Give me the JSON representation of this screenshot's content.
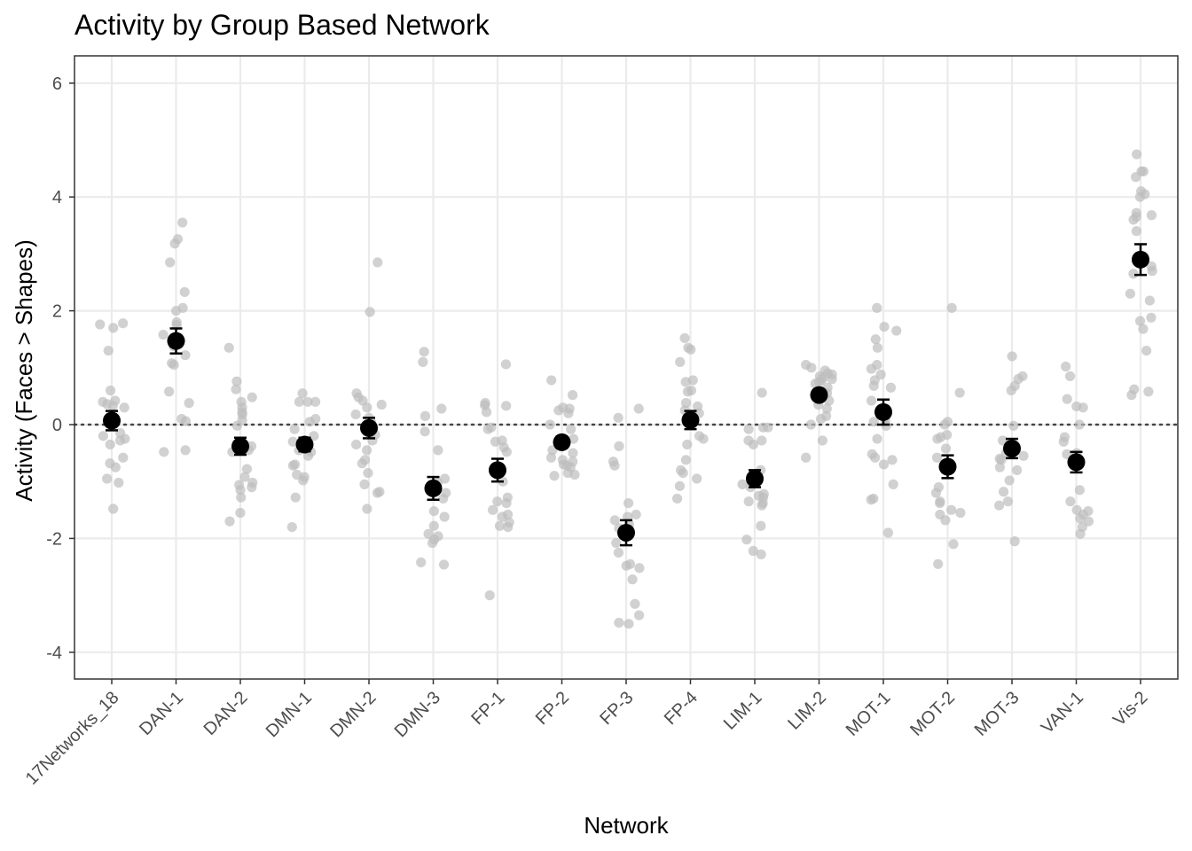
{
  "chart_data": {
    "type": "scatter",
    "title": "Activity by Group Based Network",
    "xlabel": "Network",
    "ylabel": "Activity (Faces > Shapes)",
    "ylim": [
      -4.5,
      6.5
    ],
    "yticks": [
      -4,
      -2,
      0,
      2,
      4,
      6
    ],
    "grid": true,
    "reference_line": 0,
    "categories": [
      "17Networks_18",
      "DAN-1",
      "DAN-2",
      "DMN-1",
      "DMN-2",
      "DMN-3",
      "FP-1",
      "FP-2",
      "FP-3",
      "FP-4",
      "LIM-1",
      "LIM-2",
      "MOT-1",
      "MOT-2",
      "MOT-3",
      "VAN-1",
      "Vis-2"
    ],
    "series": [
      {
        "kind": "mean",
        "values": [
          0.07,
          1.47,
          -0.38,
          -0.35,
          -0.06,
          -1.12,
          -0.8,
          -0.31,
          -1.9,
          0.08,
          -0.95,
          0.52,
          0.22,
          -0.74,
          -0.42,
          -0.66,
          2.9
        ],
        "error": [
          0.17,
          0.22,
          0.15,
          0.12,
          0.18,
          0.2,
          0.2,
          0.1,
          0.22,
          0.16,
          0.15,
          0.08,
          0.22,
          0.2,
          0.17,
          0.18,
          0.27
        ]
      },
      {
        "kind": "individual",
        "points": [
          [
            1.78,
            1.76,
            1.7,
            1.3,
            0.6,
            0.42,
            0.4,
            0.36,
            0.33,
            0.3,
            -0.15,
            -0.2,
            -0.25,
            -0.28,
            -0.35,
            -0.58,
            -0.68,
            -0.75,
            -0.95,
            -1.02,
            -1.48
          ],
          [
            3.55,
            3.26,
            3.18,
            2.85,
            2.33,
            2.05,
            2.0,
            1.8,
            1.75,
            1.58,
            1.52,
            1.45,
            1.38,
            1.22,
            1.08,
            1.05,
            0.58,
            0.38,
            0.1,
            0.06,
            -0.45,
            -0.48
          ],
          [
            1.35,
            0.76,
            0.62,
            0.48,
            0.4,
            0.3,
            0.22,
            0.18,
            0.08,
            -0.02,
            -0.38,
            -0.45,
            -0.48,
            -0.78,
            -0.92,
            -1.02,
            -1.06,
            -1.1,
            -1.15,
            -1.28,
            -1.55,
            -1.7
          ],
          [
            0.55,
            0.4,
            0.4,
            0.4,
            0.1,
            0.05,
            -0.08,
            -0.2,
            -0.3,
            -0.45,
            -0.48,
            -0.55,
            -0.7,
            -0.72,
            -0.88,
            -0.92,
            -0.98,
            -1.28,
            -1.8
          ],
          [
            2.85,
            1.98,
            0.55,
            0.48,
            0.42,
            0.35,
            0.3,
            0.18,
            0.12,
            0.05,
            -0.18,
            -0.28,
            -0.35,
            -0.45,
            -0.62,
            -0.68,
            -0.85,
            -1.05,
            -1.18,
            -1.2,
            -1.48
          ],
          [
            1.28,
            1.1,
            0.28,
            0.15,
            -0.12,
            -0.45,
            -0.95,
            -1.02,
            -1.2,
            -1.3,
            -1.52,
            -1.62,
            -1.78,
            -1.92,
            -1.96,
            -2.02,
            -2.08,
            -2.42,
            -2.46
          ],
          [
            1.06,
            0.38,
            0.34,
            0.33,
            0.22,
            -0.05,
            -0.08,
            -0.28,
            -0.3,
            -0.4,
            -0.48,
            -1.0,
            -1.28,
            -1.35,
            -1.38,
            -1.5,
            -1.58,
            -1.62,
            -1.72,
            -1.78,
            -1.8,
            -3.0
          ],
          [
            0.78,
            0.52,
            0.3,
            0.28,
            0.25,
            0.2,
            0.0,
            -0.08,
            -0.25,
            -0.45,
            -0.5,
            -0.58,
            -0.62,
            -0.65,
            -0.7,
            -0.72,
            -0.75,
            -0.85,
            -0.88,
            -0.9
          ],
          [
            0.28,
            0.12,
            -0.38,
            -0.65,
            -0.72,
            -1.38,
            -1.58,
            -1.62,
            -1.68,
            -1.75,
            -1.82,
            -1.88,
            -2.08,
            -2.25,
            -2.45,
            -2.48,
            -2.52,
            -2.72,
            -3.15,
            -3.35,
            -3.48,
            -3.5
          ],
          [
            1.52,
            1.35,
            1.32,
            1.1,
            0.78,
            0.75,
            0.6,
            0.58,
            0.38,
            0.32,
            0.25,
            0.2,
            -0.2,
            -0.25,
            -0.35,
            -0.62,
            -0.8,
            -0.85,
            -0.95,
            -1.08,
            -1.3
          ],
          [
            0.56,
            -0.05,
            -0.05,
            -0.08,
            -0.28,
            -0.28,
            -0.35,
            -0.8,
            -1.05,
            -1.1,
            -1.22,
            -1.25,
            -1.28,
            -1.35,
            -1.38,
            -1.42,
            -1.78,
            -2.02,
            -2.22,
            -2.28
          ],
          [
            1.05,
            1.0,
            0.95,
            0.9,
            0.88,
            0.85,
            0.82,
            0.8,
            0.78,
            0.75,
            0.72,
            0.65,
            0.58,
            0.55,
            0.42,
            0.35,
            0.28,
            0.15,
            0.1,
            0.0,
            -0.28,
            -0.58
          ],
          [
            2.05,
            1.72,
            1.65,
            1.5,
            1.35,
            1.05,
            0.98,
            0.88,
            0.78,
            0.68,
            0.65,
            0.42,
            0.08,
            0.05,
            -0.02,
            -0.25,
            -0.52,
            -0.58,
            -0.62,
            -0.7,
            -1.05,
            -1.3,
            -1.32,
            -1.9
          ],
          [
            2.05,
            0.56,
            0.05,
            0.0,
            -0.18,
            -0.22,
            -0.25,
            -0.42,
            -0.58,
            -1.1,
            -1.2,
            -1.35,
            -1.38,
            -1.5,
            -1.55,
            -1.58,
            -1.68,
            -2.1,
            -2.45
          ],
          [
            1.2,
            0.85,
            0.8,
            0.68,
            0.6,
            -0.02,
            -0.28,
            -0.35,
            -0.5,
            -0.52,
            -0.55,
            -0.6,
            -0.62,
            -0.75,
            -0.8,
            -0.98,
            -1.18,
            -1.35,
            -1.42,
            -2.05
          ],
          [
            1.02,
            0.85,
            0.45,
            0.32,
            0.3,
            0.0,
            -0.22,
            -0.3,
            -0.5,
            -0.52,
            -0.62,
            -1.15,
            -1.35,
            -1.5,
            -1.52,
            -1.58,
            -1.65,
            -1.7,
            -1.8,
            -1.92
          ],
          [
            4.75,
            4.45,
            4.45,
            4.35,
            4.1,
            4.05,
            4.0,
            3.72,
            3.68,
            3.65,
            3.6,
            3.4,
            2.78,
            2.7,
            2.65,
            2.3,
            2.18,
            1.88,
            1.82,
            1.68,
            1.3,
            0.62,
            0.58,
            0.52
          ]
        ]
      }
    ]
  }
}
